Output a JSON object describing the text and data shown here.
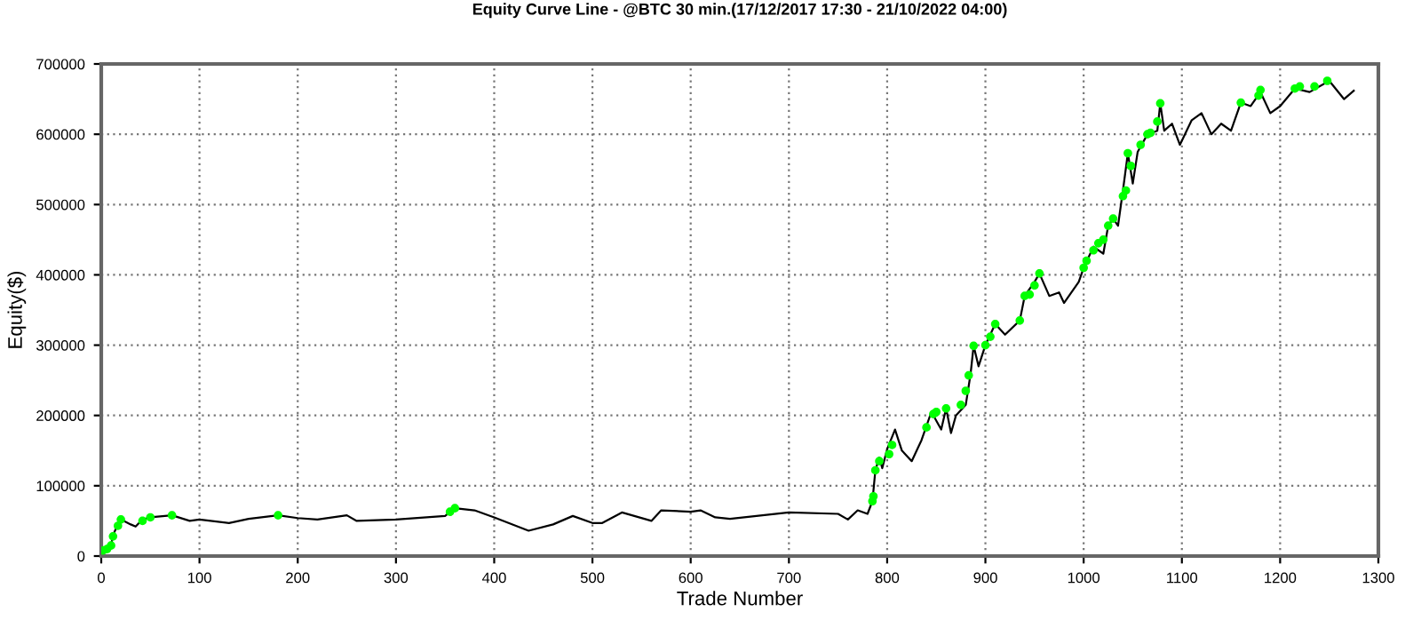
{
  "chart_data": {
    "type": "line",
    "title": "Equity Curve Line - @BTC 30 min.(17/12/2017 17:30 - 21/10/2022 04:00)",
    "xlabel": "Trade Number",
    "ylabel": "Equity($)",
    "xlim": [
      0,
      1300
    ],
    "xticks": [
      0,
      100,
      200,
      300,
      400,
      500,
      600,
      700,
      800,
      900,
      1000,
      1100,
      1200,
      1300
    ],
    "ylim": [
      0,
      700000
    ],
    "yticks": [
      0,
      100000,
      200000,
      300000,
      400000,
      500000,
      600000,
      700000
    ],
    "grid": true,
    "legend": false,
    "series": [
      {
        "color": "#000000",
        "marker": "none",
        "x": [
          0,
          5,
          10,
          12,
          17,
          20,
          30,
          35,
          42,
          50,
          72,
          90,
          100,
          130,
          150,
          180,
          200,
          220,
          250,
          260,
          300,
          350,
          360,
          380,
          400,
          435,
          460,
          480,
          500,
          510,
          530,
          560,
          570,
          600,
          610,
          625,
          640,
          700,
          750,
          760,
          770,
          780,
          785,
          788,
          792,
          795,
          800,
          808,
          815,
          825,
          835,
          845,
          855,
          860,
          865,
          870,
          880,
          885,
          888,
          893,
          900,
          910,
          920,
          935,
          940,
          950,
          955,
          965,
          975,
          980,
          995,
          1000,
          1010,
          1020,
          1025,
          1030,
          1035,
          1040,
          1045,
          1050,
          1055,
          1065,
          1075,
          1078,
          1082,
          1090,
          1098,
          1110,
          1120,
          1130,
          1140,
          1150,
          1160,
          1170,
          1180,
          1190,
          1200,
          1215,
          1230,
          1250,
          1265,
          1275
        ],
        "values": [
          8000,
          10000,
          15000,
          30000,
          45000,
          52000,
          45000,
          42000,
          52000,
          55000,
          58000,
          50000,
          52000,
          47000,
          53000,
          58000,
          54000,
          52000,
          58000,
          50000,
          52000,
          57000,
          68000,
          65000,
          55000,
          36000,
          45000,
          57000,
          47000,
          47000,
          62000,
          50000,
          65000,
          63000,
          65000,
          55000,
          53000,
          62000,
          60000,
          52000,
          65000,
          60000,
          78000,
          122000,
          140000,
          125000,
          152000,
          180000,
          150000,
          135000,
          165000,
          205000,
          180000,
          210000,
          175000,
          200000,
          215000,
          260000,
          299000,
          270000,
          300000,
          330000,
          315000,
          335000,
          370000,
          390000,
          402000,
          370000,
          375000,
          360000,
          390000,
          410000,
          440000,
          430000,
          470000,
          480000,
          470000,
          520000,
          573000,
          530000,
          575000,
          600000,
          605000,
          644000,
          605000,
          615000,
          585000,
          620000,
          630000,
          600000,
          615000,
          605000,
          645000,
          640000,
          660000,
          630000,
          640000,
          665000,
          660000,
          676000,
          650000,
          662000
        ]
      },
      {
        "type": "scatter",
        "color": "#00ff00",
        "marker": "circle",
        "x": [
          2,
          6,
          10,
          12,
          17,
          20,
          42,
          50,
          72,
          180,
          355,
          360,
          785,
          786,
          788,
          792,
          802,
          805,
          840,
          847,
          850,
          860,
          875,
          880,
          883,
          888,
          900,
          905,
          910,
          935,
          940,
          945,
          950,
          955,
          1000,
          1003,
          1010,
          1015,
          1020,
          1025,
          1030,
          1040,
          1043,
          1045,
          1048,
          1058,
          1065,
          1068,
          1075,
          1078,
          1160,
          1178,
          1180,
          1215,
          1220,
          1235,
          1248
        ],
        "values": [
          8000,
          10000,
          15000,
          28000,
          43000,
          52000,
          50000,
          55000,
          58000,
          58000,
          63000,
          68000,
          78000,
          85000,
          122000,
          135000,
          145000,
          158000,
          183000,
          202000,
          205000,
          210000,
          215000,
          235000,
          257000,
          299000,
          300000,
          312000,
          330000,
          335000,
          370000,
          372000,
          385000,
          402000,
          410000,
          420000,
          435000,
          445000,
          450000,
          470000,
          480000,
          512000,
          520000,
          573000,
          555000,
          585000,
          600000,
          602000,
          618000,
          644000,
          645000,
          655000,
          663000,
          665000,
          668000,
          668000,
          676000
        ]
      }
    ]
  }
}
